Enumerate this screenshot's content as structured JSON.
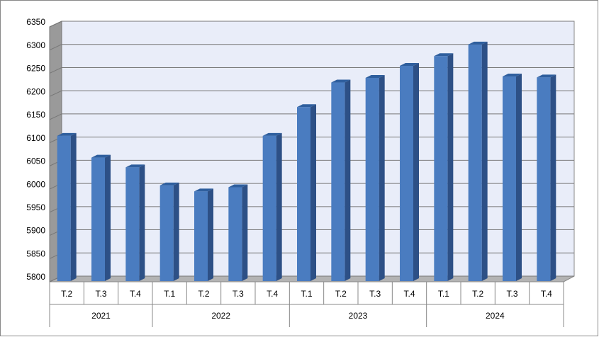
{
  "chart_data": {
    "type": "bar",
    "color": "#4a7cc0",
    "grid": true,
    "ylim": [
      5800,
      6350
    ],
    "yticks": [
      5800,
      5850,
      5900,
      5950,
      6000,
      6050,
      6100,
      6150,
      6200,
      6250,
      6300,
      6350
    ],
    "groups": [
      {
        "name": "2021",
        "categories": [
          "T.2",
          "T.3",
          "T.4"
        ],
        "values": [
          6115,
          6068,
          6047
        ]
      },
      {
        "name": "2022",
        "categories": [
          "T.1",
          "T.2",
          "T.3",
          "T.4"
        ],
        "values": [
          6008,
          5995,
          6004,
          6115
        ]
      },
      {
        "name": "2023",
        "categories": [
          "T.1",
          "T.2",
          "T.3",
          "T.4"
        ],
        "values": [
          6177,
          6230,
          6240,
          6266
        ]
      },
      {
        "name": "2024",
        "categories": [
          "T.1",
          "T.2",
          "T.3",
          "T.4"
        ],
        "values": [
          6287,
          6312,
          6243,
          6241
        ]
      }
    ]
  }
}
